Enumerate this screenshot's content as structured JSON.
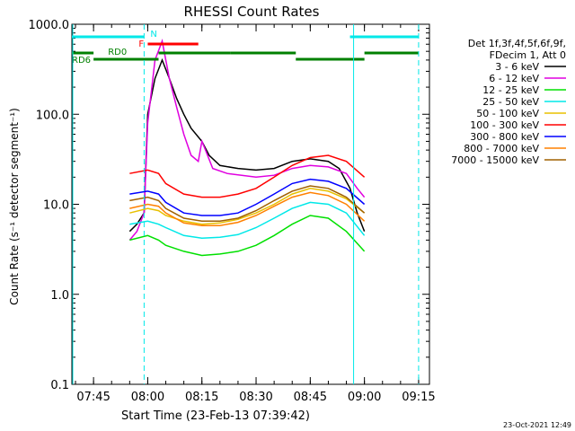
{
  "footer_timestamp": "23-Oct-2021 12:49",
  "chart_data": {
    "type": "line",
    "title": "RHESSI Count Rates",
    "xlabel": "Start Time (23-Feb-13 07:39:42)",
    "ylabel": "Count Rate (s⁻¹ detector segment⁻¹)",
    "y_scale": "log",
    "ylim": [
      0.1,
      1000
    ],
    "xlim": [
      "07:39",
      "09:18"
    ],
    "x_ticks": [
      "07:45",
      "08:00",
      "08:15",
      "08:30",
      "08:45",
      "09:00",
      "09:15"
    ],
    "y_ticks": [
      "0.1",
      "1.0",
      "10.0",
      "100.0",
      "1000.0"
    ],
    "legend": {
      "placement": "right",
      "header": [
        "Det 1f,3f,4f,5f,6f,9f,",
        "FDecim 1, Att 0"
      ],
      "entries": [
        {
          "label": "3 - 6 keV",
          "color": "#000000"
        },
        {
          "label": "6 - 12 keV",
          "color": "#e000e0"
        },
        {
          "label": "12 - 25 keV",
          "color": "#00e000"
        },
        {
          "label": "25 - 50 keV",
          "color": "#00e8e8"
        },
        {
          "label": "50 - 100 keV",
          "color": "#e8c000"
        },
        {
          "label": "100 - 300 keV",
          "color": "#ff0000"
        },
        {
          "label": "300 - 800 keV",
          "color": "#0000ff"
        },
        {
          "label": "800 - 7000 keV",
          "color": "#ff8000"
        },
        {
          "label": "7000 - 15000 keV",
          "color": "#a06000"
        }
      ]
    },
    "annotations": [
      {
        "label": "N",
        "color": "#00e8e8"
      },
      {
        "label": "F",
        "color": "#ff0000"
      },
      {
        "label": "RD0",
        "color": "#008000"
      },
      {
        "label": "RD6",
        "color": "#008000"
      }
    ],
    "series": [
      {
        "name": "3 - 6 keV",
        "color": "#000000",
        "points": [
          [
            "07:55",
            5
          ],
          [
            "07:57",
            6
          ],
          [
            "07:59",
            8
          ],
          [
            "08:00",
            100
          ],
          [
            "08:02",
            250
          ],
          [
            "08:04",
            400
          ],
          [
            "08:06",
            250
          ],
          [
            "08:08",
            150
          ],
          [
            "08:10",
            100
          ],
          [
            "08:12",
            70
          ],
          [
            "08:15",
            50
          ],
          [
            "08:17",
            35
          ],
          [
            "08:20",
            27
          ],
          [
            "08:25",
            25
          ],
          [
            "08:30",
            24
          ],
          [
            "08:35",
            25
          ],
          [
            "08:40",
            30
          ],
          [
            "08:45",
            32
          ],
          [
            "08:50",
            30
          ],
          [
            "08:53",
            25
          ],
          [
            "08:56",
            15
          ],
          [
            "08:58",
            8
          ],
          [
            "09:00",
            5
          ]
        ]
      },
      {
        "name": "6 - 12 keV",
        "color": "#e000e0",
        "points": [
          [
            "07:55",
            4
          ],
          [
            "07:57",
            5
          ],
          [
            "07:59",
            8
          ],
          [
            "08:00",
            80
          ],
          [
            "08:02",
            400
          ],
          [
            "08:04",
            650
          ],
          [
            "08:06",
            250
          ],
          [
            "08:08",
            120
          ],
          [
            "08:10",
            60
          ],
          [
            "08:12",
            35
          ],
          [
            "08:14",
            30
          ],
          [
            "08:15",
            50
          ],
          [
            "08:16",
            40
          ],
          [
            "08:18",
            25
          ],
          [
            "08:22",
            22
          ],
          [
            "08:30",
            20
          ],
          [
            "08:35",
            21
          ],
          [
            "08:40",
            25
          ],
          [
            "08:45",
            27
          ],
          [
            "08:50",
            26
          ],
          [
            "08:55",
            22
          ],
          [
            "08:58",
            15
          ],
          [
            "09:00",
            12
          ]
        ]
      },
      {
        "name": "12 - 25 keV",
        "color": "#00e000",
        "points": [
          [
            "07:55",
            4
          ],
          [
            "08:00",
            4.5
          ],
          [
            "08:03",
            4
          ],
          [
            "08:05",
            3.5
          ],
          [
            "08:10",
            3
          ],
          [
            "08:15",
            2.7
          ],
          [
            "08:20",
            2.8
          ],
          [
            "08:25",
            3
          ],
          [
            "08:30",
            3.5
          ],
          [
            "08:35",
            4.5
          ],
          [
            "08:40",
            6
          ],
          [
            "08:45",
            7.5
          ],
          [
            "08:50",
            7
          ],
          [
            "08:55",
            5
          ],
          [
            "09:00",
            3
          ]
        ]
      },
      {
        "name": "25 - 50 keV",
        "color": "#00e8e8",
        "points": [
          [
            "07:55",
            6
          ],
          [
            "08:00",
            6.5
          ],
          [
            "08:03",
            6
          ],
          [
            "08:05",
            5.5
          ],
          [
            "08:10",
            4.5
          ],
          [
            "08:15",
            4.2
          ],
          [
            "08:20",
            4.3
          ],
          [
            "08:25",
            4.6
          ],
          [
            "08:30",
            5.5
          ],
          [
            "08:35",
            7
          ],
          [
            "08:40",
            9
          ],
          [
            "08:45",
            10.5
          ],
          [
            "08:50",
            10
          ],
          [
            "08:55",
            8
          ],
          [
            "09:00",
            4.5
          ]
        ]
      },
      {
        "name": "50 - 100 keV",
        "color": "#e8c000",
        "points": [
          [
            "07:55",
            8
          ],
          [
            "08:00",
            9
          ],
          [
            "08:03",
            8.5
          ],
          [
            "08:05",
            7.5
          ],
          [
            "08:10",
            6.5
          ],
          [
            "08:15",
            6
          ],
          [
            "08:20",
            6.2
          ],
          [
            "08:25",
            6.8
          ],
          [
            "08:30",
            8
          ],
          [
            "08:35",
            10
          ],
          [
            "08:40",
            13
          ],
          [
            "08:45",
            15
          ],
          [
            "08:50",
            14
          ],
          [
            "08:55",
            11.5
          ],
          [
            "09:00",
            8
          ]
        ]
      },
      {
        "name": "100 - 300 keV",
        "color": "#ff0000",
        "points": [
          [
            "07:55",
            22
          ],
          [
            "08:00",
            24
          ],
          [
            "08:03",
            22
          ],
          [
            "08:05",
            17
          ],
          [
            "08:10",
            13
          ],
          [
            "08:15",
            12
          ],
          [
            "08:20",
            12
          ],
          [
            "08:25",
            13
          ],
          [
            "08:30",
            15
          ],
          [
            "08:35",
            20
          ],
          [
            "08:40",
            27
          ],
          [
            "08:45",
            33
          ],
          [
            "08:50",
            35
          ],
          [
            "08:55",
            30
          ],
          [
            "09:00",
            20
          ]
        ]
      },
      {
        "name": "300 - 800 keV",
        "color": "#0000ff",
        "points": [
          [
            "07:55",
            13
          ],
          [
            "08:00",
            14
          ],
          [
            "08:03",
            13
          ],
          [
            "08:05",
            10.5
          ],
          [
            "08:10",
            8
          ],
          [
            "08:15",
            7.5
          ],
          [
            "08:20",
            7.5
          ],
          [
            "08:25",
            8
          ],
          [
            "08:30",
            10
          ],
          [
            "08:35",
            13
          ],
          [
            "08:40",
            17
          ],
          [
            "08:45",
            19
          ],
          [
            "08:50",
            18
          ],
          [
            "08:55",
            15
          ],
          [
            "09:00",
            10
          ]
        ]
      },
      {
        "name": "800 - 7000 keV",
        "color": "#ff8000",
        "points": [
          [
            "07:55",
            9
          ],
          [
            "08:00",
            10
          ],
          [
            "08:03",
            9.5
          ],
          [
            "08:05",
            8
          ],
          [
            "08:10",
            6.2
          ],
          [
            "08:15",
            5.8
          ],
          [
            "08:20",
            5.8
          ],
          [
            "08:25",
            6.3
          ],
          [
            "08:30",
            7.5
          ],
          [
            "08:35",
            9.5
          ],
          [
            "08:40",
            12
          ],
          [
            "08:45",
            13.5
          ],
          [
            "08:50",
            12.5
          ],
          [
            "08:55",
            10
          ],
          [
            "09:00",
            6.5
          ]
        ]
      },
      {
        "name": "7000 - 15000 keV",
        "color": "#a06000",
        "points": [
          [
            "07:55",
            11
          ],
          [
            "08:00",
            12
          ],
          [
            "08:03",
            11
          ],
          [
            "08:05",
            9
          ],
          [
            "08:10",
            7
          ],
          [
            "08:15",
            6.5
          ],
          [
            "08:20",
            6.5
          ],
          [
            "08:25",
            7
          ],
          [
            "08:30",
            8.5
          ],
          [
            "08:35",
            11
          ],
          [
            "08:40",
            14
          ],
          [
            "08:45",
            16
          ],
          [
            "08:50",
            15
          ],
          [
            "08:55",
            12
          ],
          [
            "09:00",
            8
          ]
        ]
      }
    ]
  }
}
